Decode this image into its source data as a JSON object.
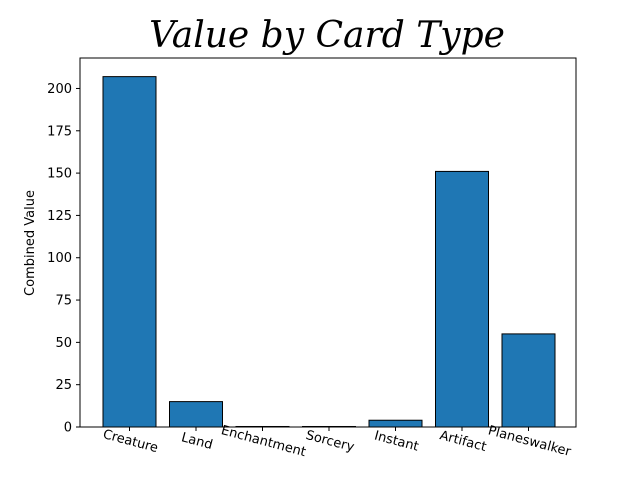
{
  "chart_data": {
    "type": "bar",
    "title": "Value by Card Type",
    "xlabel": "",
    "ylabel": "Combined Value",
    "categories": [
      "Creature",
      "Land",
      "Enchantment",
      "Sorcery",
      "Instant",
      "Artifact",
      "Planeswalker"
    ],
    "values": [
      207,
      15,
      0.3,
      0.3,
      4,
      151,
      55
    ],
    "ylim": [
      0,
      218
    ],
    "yticks": [
      0,
      25,
      50,
      75,
      100,
      125,
      150,
      175,
      200
    ],
    "grid": false,
    "bar_color": "#1f77b4",
    "edge_color": "#000000"
  }
}
